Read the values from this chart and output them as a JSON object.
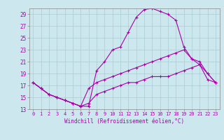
{
  "xlabel": "Windchill (Refroidissement éolien,°C)",
  "background_color": "#cce8ee",
  "grid_color": "#aaccd4",
  "line_color": "#aa00aa",
  "xlim": [
    -0.5,
    23.5
  ],
  "ylim": [
    13,
    30
  ],
  "yticks": [
    13,
    15,
    17,
    19,
    21,
    23,
    25,
    27,
    29
  ],
  "xticks": [
    0,
    1,
    2,
    3,
    4,
    5,
    6,
    7,
    8,
    9,
    10,
    11,
    12,
    13,
    14,
    15,
    16,
    17,
    18,
    19,
    20,
    21,
    22,
    23
  ],
  "line1_x": [
    0,
    1,
    2,
    3,
    4,
    5,
    6,
    7,
    8,
    9,
    10,
    11,
    12,
    13,
    14,
    15,
    16,
    17,
    18,
    19,
    20,
    21,
    22,
    23
  ],
  "line1_y": [
    17.5,
    16.5,
    15.5,
    15.0,
    14.5,
    14.0,
    13.5,
    13.5,
    19.5,
    21.0,
    23.0,
    23.5,
    26.0,
    28.5,
    29.8,
    30.0,
    29.5,
    29.0,
    28.0,
    23.5,
    21.5,
    20.5,
    19.0,
    17.5
  ],
  "line2_x": [
    0,
    1,
    2,
    3,
    4,
    5,
    6,
    7,
    8,
    9,
    10,
    11,
    12,
    13,
    14,
    15,
    16,
    17,
    18,
    19,
    20,
    21,
    22,
    23
  ],
  "line2_y": [
    17.5,
    16.5,
    15.5,
    15.0,
    14.5,
    14.0,
    13.5,
    16.5,
    17.5,
    18.0,
    18.5,
    19.0,
    19.5,
    20.0,
    20.5,
    21.0,
    21.5,
    22.0,
    22.5,
    23.0,
    21.5,
    21.0,
    19.0,
    17.5
  ],
  "line3_x": [
    0,
    1,
    2,
    3,
    4,
    5,
    6,
    7,
    8,
    9,
    10,
    11,
    12,
    13,
    14,
    15,
    16,
    17,
    18,
    19,
    20,
    21,
    22,
    23
  ],
  "line3_y": [
    17.5,
    16.5,
    15.5,
    15.0,
    14.5,
    14.0,
    13.5,
    14.0,
    15.5,
    16.0,
    16.5,
    17.0,
    17.5,
    17.5,
    18.0,
    18.5,
    18.5,
    18.5,
    19.0,
    19.5,
    20.0,
    20.5,
    18.0,
    17.5
  ]
}
